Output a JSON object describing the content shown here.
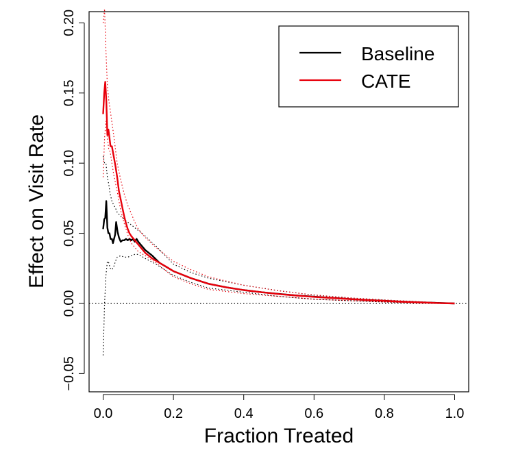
{
  "chart_data": {
    "type": "line",
    "title": "",
    "xlabel": "Fraction Treated",
    "ylabel": "Effect on Visit Rate",
    "xlim": [
      -0.04,
      1.04
    ],
    "ylim": [
      -0.063,
      0.208
    ],
    "xticks": [
      0.0,
      0.2,
      0.4,
      0.6,
      0.8,
      1.0
    ],
    "xtick_labels": [
      "0.0",
      "0.2",
      "0.4",
      "0.6",
      "0.8",
      "1.0"
    ],
    "yticks": [
      -0.05,
      0.0,
      0.05,
      0.1,
      0.15,
      0.2
    ],
    "ytick_labels": [
      "−0.05",
      "0.00",
      "0.05",
      "0.10",
      "0.15",
      "0.20"
    ],
    "reference_line": {
      "y": 0.0,
      "style": "dotted",
      "color": "#000000"
    },
    "legend": {
      "position": "top-right",
      "entries": [
        "Baseline",
        "CATE"
      ]
    },
    "series": [
      {
        "name": "Baseline",
        "color": "#000000",
        "style": "solid",
        "x": [
          0.0,
          0.003,
          0.006,
          0.009,
          0.012,
          0.015,
          0.018,
          0.021,
          0.025,
          0.028,
          0.031,
          0.034,
          0.037,
          0.041,
          0.045,
          0.05,
          0.055,
          0.06,
          0.065,
          0.07,
          0.075,
          0.08,
          0.085,
          0.09,
          0.095,
          0.1,
          0.11,
          0.12,
          0.14,
          0.16,
          0.18,
          0.2,
          0.25,
          0.3,
          0.35,
          0.4,
          0.45,
          0.5,
          0.55,
          0.6,
          0.65,
          0.7,
          0.75,
          0.8,
          0.85,
          0.9,
          0.95,
          1.0
        ],
        "y": [
          0.053,
          0.06,
          0.061,
          0.073,
          0.054,
          0.05,
          0.05,
          0.046,
          0.046,
          0.043,
          0.046,
          0.049,
          0.058,
          0.051,
          0.047,
          0.044,
          0.045,
          0.045,
          0.046,
          0.045,
          0.046,
          0.045,
          0.046,
          0.044,
          0.046,
          0.044,
          0.041,
          0.038,
          0.034,
          0.029,
          0.026,
          0.023,
          0.018,
          0.014,
          0.0115,
          0.0095,
          0.008,
          0.0068,
          0.0057,
          0.0048,
          0.004,
          0.0032,
          0.0025,
          0.0019,
          0.0013,
          0.0008,
          0.0004,
          0.0
        ]
      },
      {
        "name": "Baseline bounds",
        "color": "#000000",
        "style": "dotted",
        "x": [
          0.0,
          0.004,
          0.008,
          0.012,
          0.016,
          0.02,
          0.025,
          0.03,
          0.035,
          0.04,
          0.05,
          0.06,
          0.07,
          0.08,
          0.09,
          0.1,
          0.12,
          0.15,
          0.2,
          0.25,
          0.3,
          0.4,
          0.5,
          0.6,
          0.7,
          0.8,
          0.9,
          1.0
        ],
        "upper": [
          0.105,
          0.1,
          0.1,
          0.09,
          0.085,
          0.078,
          0.073,
          0.07,
          0.068,
          0.065,
          0.062,
          0.06,
          0.058,
          0.056,
          0.054,
          0.052,
          0.048,
          0.041,
          0.028,
          0.022,
          0.018,
          0.013,
          0.009,
          0.006,
          0.004,
          0.0025,
          0.0012,
          0.0
        ],
        "lower": [
          -0.037,
          0.0,
          0.02,
          0.03,
          0.029,
          0.025,
          0.024,
          0.026,
          0.03,
          0.033,
          0.034,
          0.033,
          0.033,
          0.034,
          0.035,
          0.035,
          0.032,
          0.028,
          0.02,
          0.015,
          0.011,
          0.008,
          0.005,
          0.003,
          0.002,
          0.001,
          0.0004,
          0.0
        ]
      },
      {
        "name": "CATE",
        "color": "#e8000b",
        "style": "solid",
        "x": [
          0.0,
          0.003,
          0.006,
          0.009,
          0.012,
          0.015,
          0.018,
          0.021,
          0.025,
          0.03,
          0.035,
          0.04,
          0.045,
          0.05,
          0.055,
          0.06,
          0.065,
          0.07,
          0.075,
          0.08,
          0.09,
          0.1,
          0.11,
          0.12,
          0.14,
          0.16,
          0.18,
          0.2,
          0.25,
          0.3,
          0.35,
          0.4,
          0.45,
          0.5,
          0.55,
          0.6,
          0.65,
          0.7,
          0.75,
          0.8,
          0.85,
          0.9,
          0.95,
          1.0
        ],
        "y": [
          0.135,
          0.15,
          0.158,
          0.145,
          0.12,
          0.124,
          0.118,
          0.112,
          0.112,
          0.105,
          0.098,
          0.09,
          0.08,
          0.074,
          0.068,
          0.062,
          0.057,
          0.053,
          0.05,
          0.048,
          0.045,
          0.042,
          0.039,
          0.036,
          0.032,
          0.029,
          0.026,
          0.023,
          0.018,
          0.014,
          0.0115,
          0.0095,
          0.008,
          0.0067,
          0.0056,
          0.0047,
          0.0039,
          0.0031,
          0.0024,
          0.0018,
          0.0012,
          0.0007,
          0.0003,
          0.0
        ]
      },
      {
        "name": "CATE bounds",
        "color": "#e8000b",
        "style": "dotted",
        "x": [
          0.0,
          0.004,
          0.008,
          0.012,
          0.016,
          0.02,
          0.03,
          0.04,
          0.05,
          0.06,
          0.07,
          0.08,
          0.09,
          0.1,
          0.12,
          0.15,
          0.2,
          0.25,
          0.3,
          0.4,
          0.5,
          0.6,
          0.7,
          0.8,
          0.9,
          1.0
        ],
        "upper": [
          0.2,
          0.21,
          0.18,
          0.155,
          0.145,
          0.138,
          0.12,
          0.1,
          0.088,
          0.078,
          0.07,
          0.064,
          0.058,
          0.053,
          0.047,
          0.04,
          0.03,
          0.024,
          0.019,
          0.013,
          0.009,
          0.006,
          0.004,
          0.0025,
          0.0012,
          0.0
        ],
        "lower": [
          0.09,
          0.118,
          0.13,
          0.118,
          0.11,
          0.108,
          0.092,
          0.08,
          0.066,
          0.057,
          0.049,
          0.043,
          0.04,
          0.037,
          0.034,
          0.029,
          0.019,
          0.014,
          0.01,
          0.007,
          0.005,
          0.003,
          0.002,
          0.001,
          0.0004,
          0.0
        ]
      }
    ]
  }
}
